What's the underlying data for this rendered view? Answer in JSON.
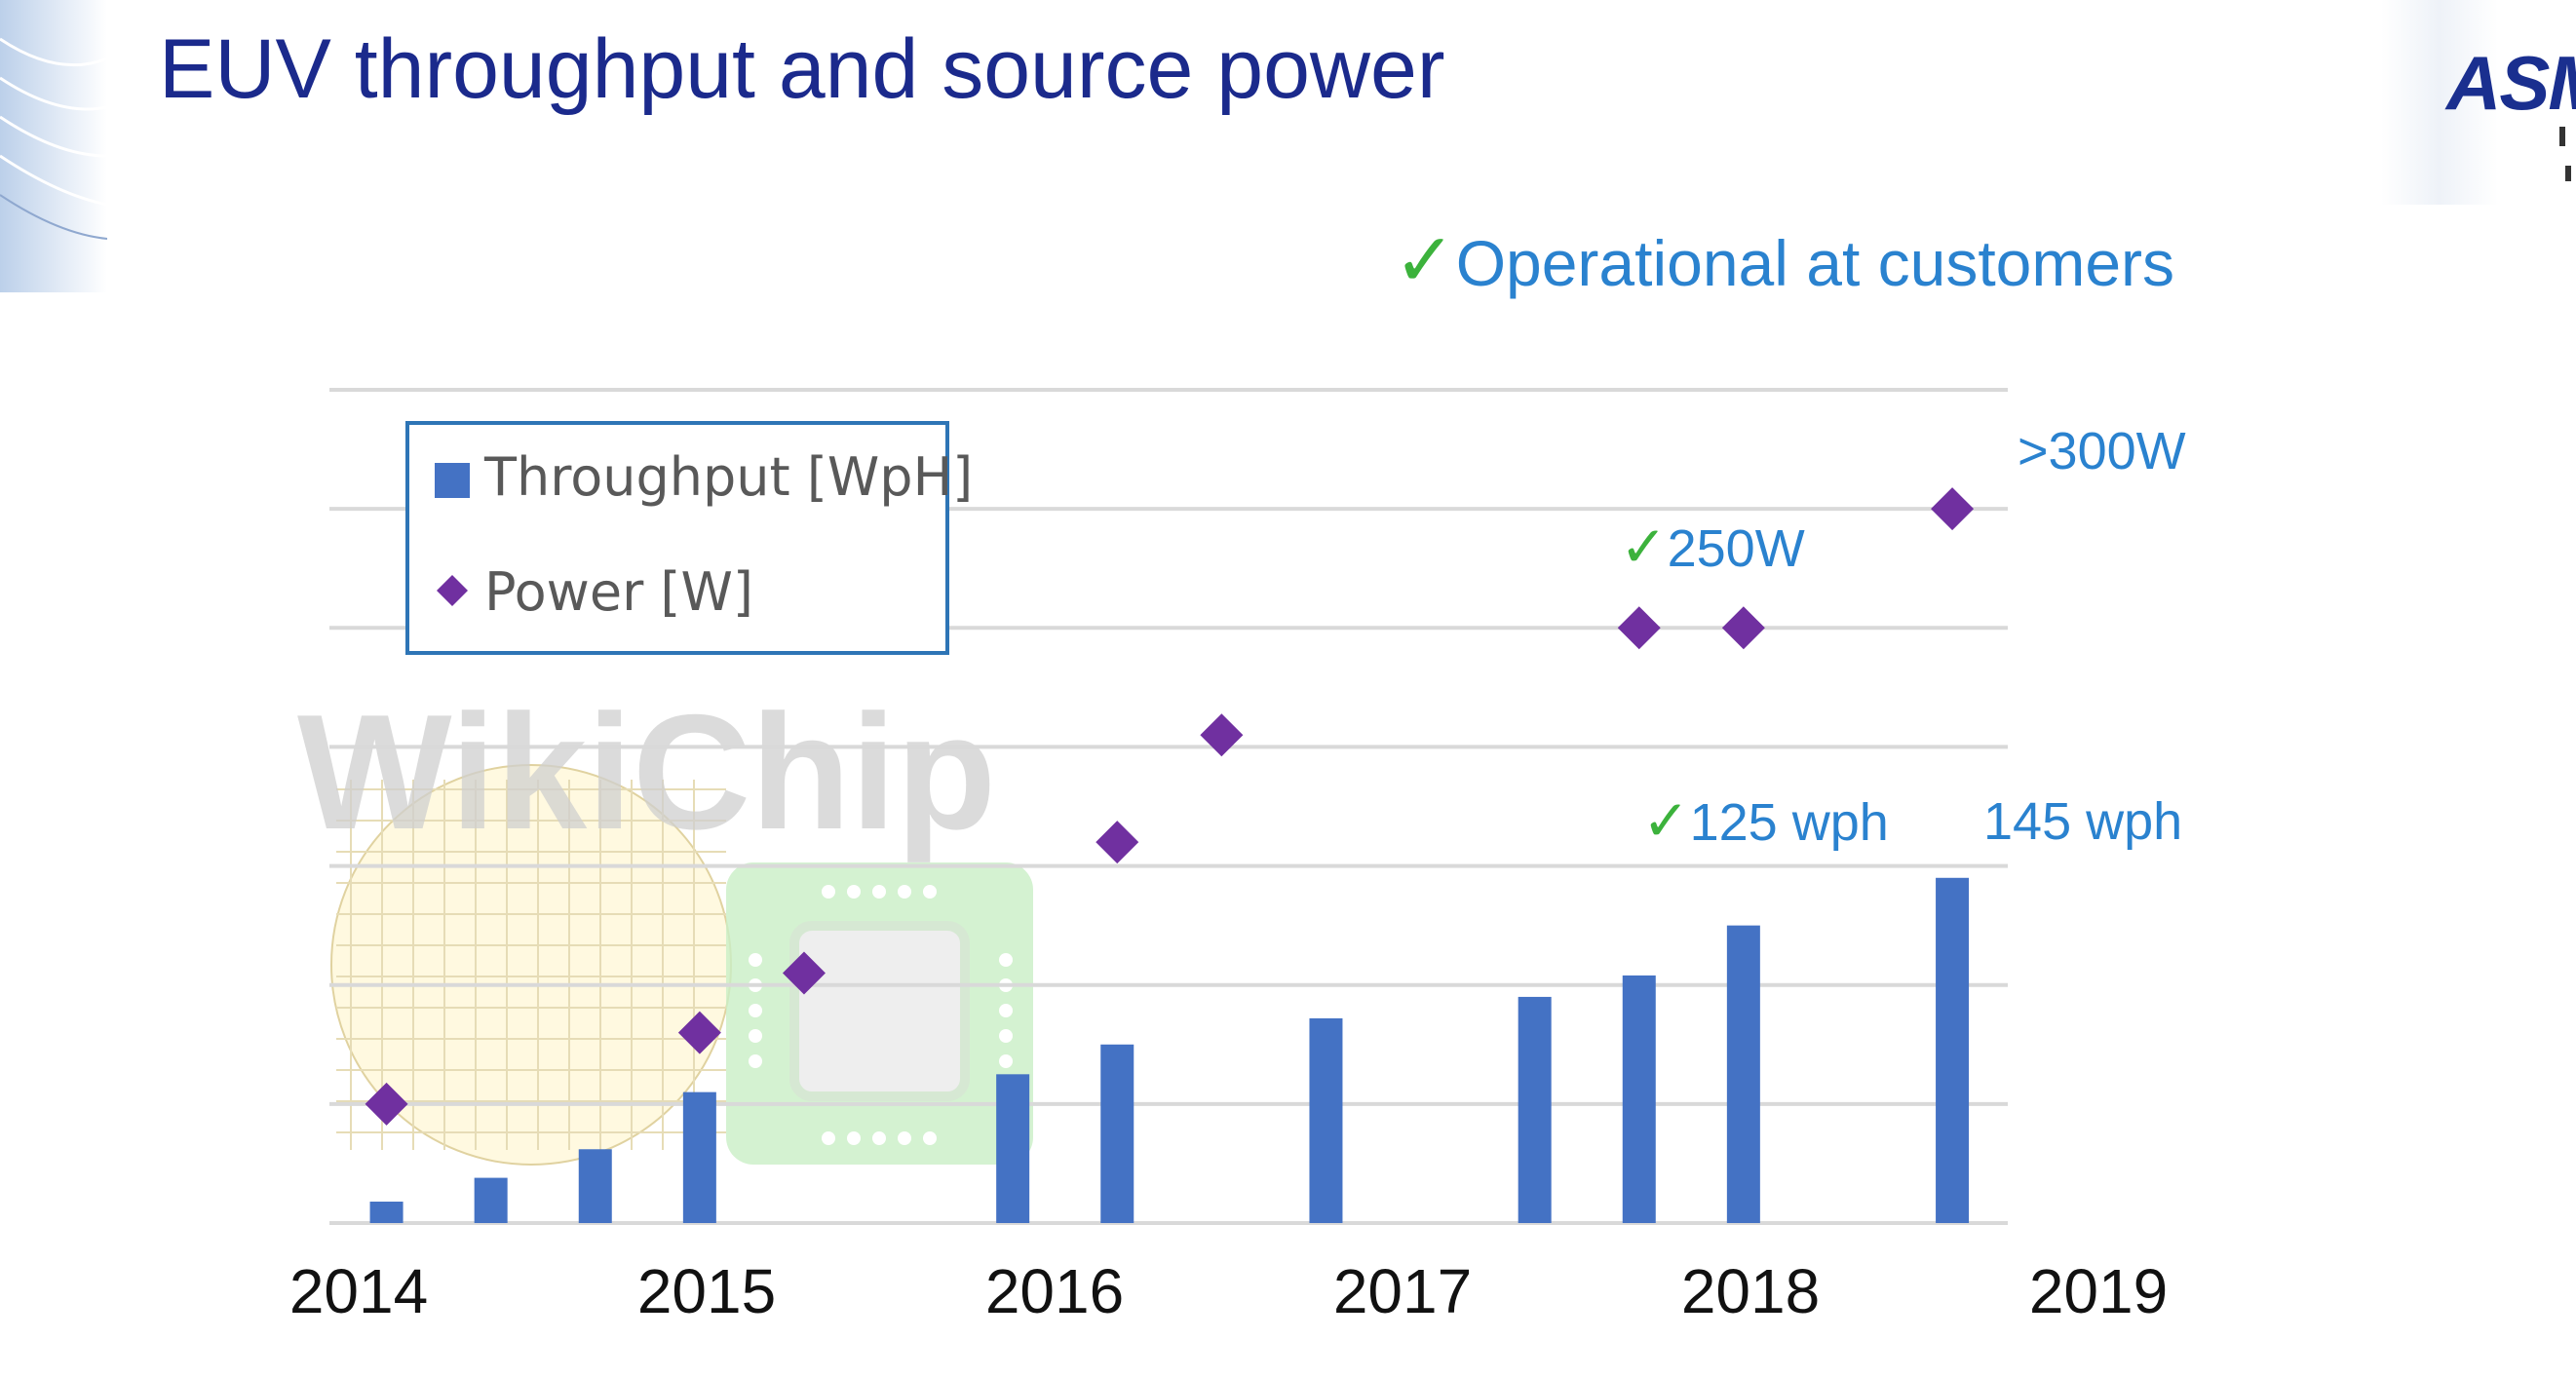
{
  "slide": {
    "title": "EUV throughput and source power",
    "logo_text": "ASM"
  },
  "callouts": {
    "operational": {
      "check": "✓",
      "text": "Operational at customers"
    },
    "power_250": {
      "check": "✓",
      "text": "250W"
    },
    "power_300": {
      "text": ">300W"
    },
    "tput_125": {
      "check": "✓",
      "text": "125 wph"
    },
    "tput_145": {
      "text": "145 wph"
    }
  },
  "watermark": {
    "text": "WikiChip"
  },
  "colors": {
    "title": "#1b2a8c",
    "bars": "#4472c4",
    "power": "#7030a0",
    "callout": "#2a82cf",
    "check": "#3cb23c",
    "grid": "#d9d9d9"
  },
  "chart_data": {
    "type": "bar",
    "title": "",
    "xlabel": "",
    "ylabel": "",
    "x_ticks": [
      "2014",
      "2015",
      "2016",
      "2017",
      "2018",
      "2019"
    ],
    "x_range": [
      2014.0,
      2019.0
    ],
    "y_range": [
      0,
      7
    ],
    "grid": true,
    "legend": {
      "placement": "top-left",
      "entries": [
        {
          "name": "Throughput [WpH]",
          "marker": "square"
        },
        {
          "name": "Power [W]",
          "marker": "diamond"
        }
      ]
    },
    "series": [
      {
        "name": "Throughput [WpH]",
        "kind": "bar",
        "points": [
          {
            "x": 2014.08,
            "y": 0.18
          },
          {
            "x": 2014.38,
            "y": 0.38
          },
          {
            "x": 2014.68,
            "y": 0.62
          },
          {
            "x": 2014.98,
            "y": 1.1
          },
          {
            "x": 2015.88,
            "y": 1.25
          },
          {
            "x": 2016.18,
            "y": 1.5
          },
          {
            "x": 2016.78,
            "y": 1.72
          },
          {
            "x": 2017.38,
            "y": 1.9
          },
          {
            "x": 2017.68,
            "y": 2.08
          },
          {
            "x": 2017.98,
            "y": 2.5
          },
          {
            "x": 2018.58,
            "y": 2.9
          }
        ]
      },
      {
        "name": "Power [W]",
        "kind": "scatter",
        "points": [
          {
            "x": 2014.08,
            "y": 1.0
          },
          {
            "x": 2014.98,
            "y": 1.6
          },
          {
            "x": 2015.28,
            "y": 2.1
          },
          {
            "x": 2016.18,
            "y": 3.2
          },
          {
            "x": 2016.48,
            "y": 4.1
          },
          {
            "x": 2017.68,
            "y": 5.0
          },
          {
            "x": 2017.98,
            "y": 5.0
          },
          {
            "x": 2018.58,
            "y": 6.0
          }
        ]
      }
    ]
  }
}
